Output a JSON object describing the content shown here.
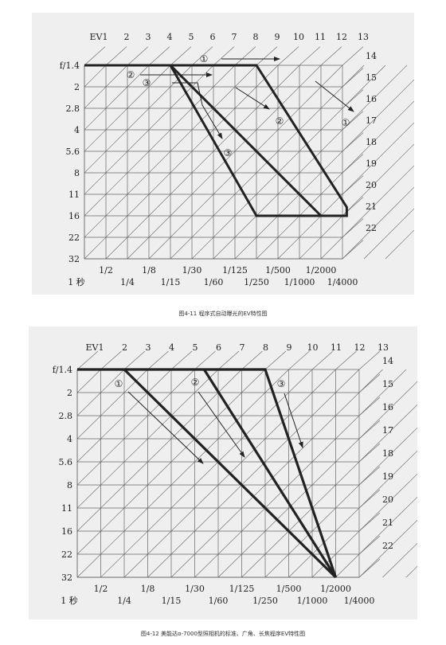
{
  "figures": [
    {
      "caption": "图4-11   程序式自动曝光的EV特性图",
      "ev_top": [
        "EV1",
        "2",
        "3",
        "4",
        "5",
        "6",
        "7",
        "8",
        "9",
        "10",
        "11",
        "12",
        "13"
      ],
      "ev_right": [
        "14",
        "15",
        "16",
        "17",
        "18",
        "19",
        "20",
        "21",
        "22"
      ],
      "f_labels": [
        "f/1.4",
        "2",
        "2.8",
        "4",
        "5.6",
        "8",
        "11",
        "16",
        "22",
        "32"
      ],
      "shutter_upper": [
        "1/2",
        "1/8",
        "1/30",
        "1/125",
        "1/500",
        "1/2000"
      ],
      "shutter_lower": [
        "1 秒",
        "1/4",
        "1/15",
        "1/60",
        "1/250",
        "1/1000",
        "1/4000"
      ],
      "program_lines": [
        "①",
        "②",
        "③"
      ]
    },
    {
      "caption": "图4-12   美能达α-7000型照相机的标准、广角、长焦程序EV特性图",
      "ev_top": [
        "EV1",
        "2",
        "3",
        "4",
        "5",
        "6",
        "7",
        "8",
        "9",
        "10",
        "11",
        "12",
        "13"
      ],
      "ev_right": [
        "14",
        "15",
        "16",
        "17",
        "18",
        "19",
        "20",
        "21",
        "22"
      ],
      "f_labels": [
        "f/1.4",
        "2",
        "2.8",
        "4",
        "5.6",
        "8",
        "11",
        "16",
        "22",
        "32"
      ],
      "shutter_upper": [
        "1/2",
        "1/8",
        "1/30",
        "1/125",
        "1/500",
        "1/2000"
      ],
      "shutter_lower": [
        "1 秒",
        "1/4",
        "1/15",
        "1/60",
        "1/250",
        "1/1000",
        "1/4000"
      ],
      "program_lines": [
        "①",
        "②",
        "③"
      ]
    }
  ]
}
